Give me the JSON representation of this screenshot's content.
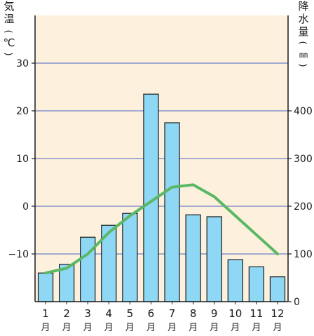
{
  "chart_data": {
    "type": "bar+line",
    "categories": [
      "1",
      "2",
      "3",
      "4",
      "5",
      "6",
      "7",
      "8",
      "9",
      "10",
      "11",
      "12"
    ],
    "month_suffix": "月",
    "left_axis_label": [
      "気",
      "温",
      "(",
      "℃",
      ")"
    ],
    "right_axis_label": [
      "降",
      "水",
      "量",
      "(",
      "㎜",
      ")"
    ],
    "left_axis": {
      "min": -20,
      "max": 40,
      "ticks": [
        30,
        20,
        10,
        0,
        -10
      ],
      "tick_labels": [
        "30",
        "20",
        "10",
        "0",
        "−10"
      ]
    },
    "right_axis": {
      "min": 0,
      "max": 600,
      "ticks": [
        0,
        100,
        200,
        300,
        400
      ],
      "tick_labels": [
        "0",
        "100",
        "200",
        "300",
        "400"
      ]
    },
    "series": [
      {
        "kind": "bar",
        "axis": "right",
        "values": [
          60,
          78,
          135,
          160,
          185,
          435,
          375,
          182,
          178,
          88,
          73,
          52
        ]
      },
      {
        "kind": "line",
        "axis": "left",
        "values": [
          -14.0,
          -13.0,
          -10.0,
          -5.5,
          -2.0,
          1.0,
          4.0,
          4.5,
          2.0,
          -2.0,
          -6.0,
          -10.0
        ]
      }
    ],
    "gridlines": [
      30,
      20,
      10,
      0,
      -10
    ],
    "colors": {
      "plot_background": "#fdf0dc",
      "bar_fill": "#8fd8f5",
      "bar_stroke": "#1a1a1a",
      "line": "#5ab865",
      "grid": "#7080c8",
      "axis": "#1a1a1a"
    }
  }
}
